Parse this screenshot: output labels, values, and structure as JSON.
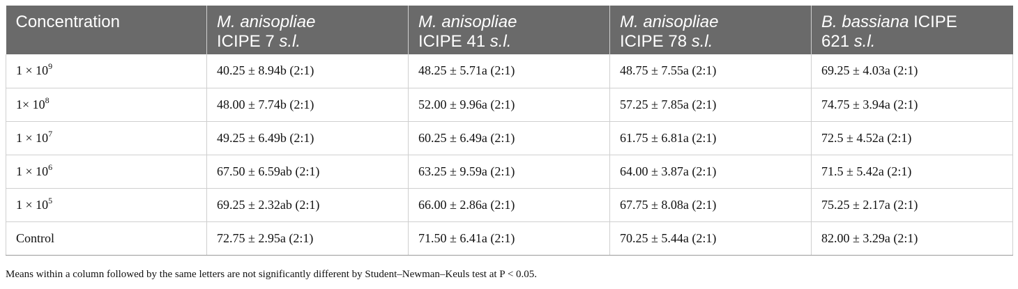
{
  "header": {
    "col0": "Concentration",
    "col1": {
      "species": "M. anisopliae",
      "strain": "ICIPE 7",
      "suffix": "s.l."
    },
    "col2": {
      "species": "M. anisopliae",
      "strain": "ICIPE 41",
      "suffix": "s.l."
    },
    "col3": {
      "species": "M. anisopliae",
      "strain": "ICIPE 78",
      "suffix": "s.l."
    },
    "col4": {
      "species": "B. bassiana",
      "strain": "ICIPE",
      "line2": "621",
      "suffix": "s.l."
    }
  },
  "rows": [
    {
      "base": "1 × 10",
      "exp": "9",
      "c1": "40.25 ± 8.94b (2:1)",
      "c2": "48.25 ± 5.71a (2:1)",
      "c3": "48.75 ± 7.55a (2:1)",
      "c4": "69.25 ± 4.03a (2:1)"
    },
    {
      "base": "1× 10",
      "exp": "8",
      "c1": "48.00 ± 7.74b (2:1)",
      "c2": "52.00 ± 9.96a (2:1)",
      "c3": "57.25 ± 7.85a (2:1)",
      "c4": "74.75 ± 3.94a (2:1)"
    },
    {
      "base": "1 × 10",
      "exp": "7",
      "c1": "49.25 ± 6.49b (2:1)",
      "c2": "60.25 ± 6.49a (2:1)",
      "c3": "61.75 ± 6.81a (2:1)",
      "c4": "72.5 ± 4.52a (2:1)"
    },
    {
      "base": "1 × 10",
      "exp": "6",
      "c1": "67.50 ± 6.59ab (2:1)",
      "c2": "63.25 ± 9.59a (2:1)",
      "c3": "64.00 ± 3.87a (2:1)",
      "c4": "71.5 ± 5.42a (2:1)"
    },
    {
      "base": "1 × 10",
      "exp": "5",
      "c1": "69.25 ± 2.32ab (2:1)",
      "c2": "66.00 ± 2.86a (2:1)",
      "c3": "67.75 ± 8.08a (2:1)",
      "c4": "75.25 ± 2.17a (2:1)"
    },
    {
      "base": "Control",
      "exp": "",
      "c1": "72.75 ± 2.95a (2:1)",
      "c2": "71.50 ± 6.41a (2:1)",
      "c3": "70.25 ± 5.44a (2:1)",
      "c4": "82.00 ± 3.29a (2:1)"
    }
  ],
  "footnote": "Means within a column followed by the same letters are not significantly different by Student–Newman–Keuls test at P < 0.05.",
  "colors": {
    "header_bg": "#6a6a6a",
    "header_text": "#ffffff",
    "border": "#cfcfcf"
  }
}
